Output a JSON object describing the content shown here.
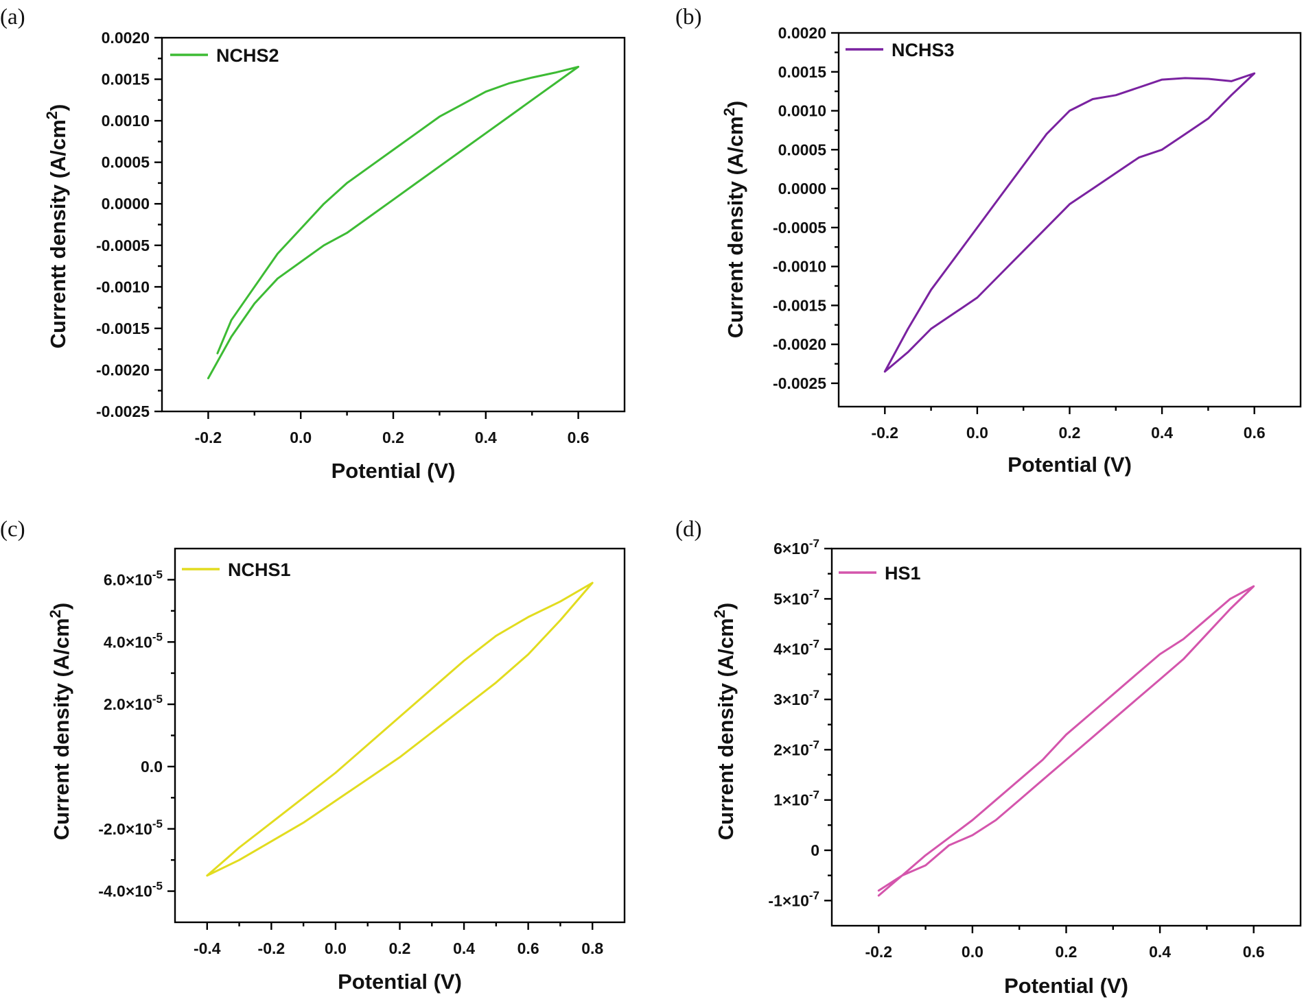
{
  "chart_data": [
    {
      "panel": "(a)",
      "type": "line",
      "title": "",
      "xlabel": "Potential (V)",
      "ylabel_main": "Currentt density (A/cm",
      "ylabel_sup": "2",
      "ylabel_end": ")",
      "xlim": [
        -0.3,
        0.7
      ],
      "ylim": [
        -0.0025,
        0.002
      ],
      "xticks": [
        -0.2,
        0.0,
        0.2,
        0.4,
        0.6
      ],
      "xtick_labels": [
        "-0.2",
        "0.0",
        "0.2",
        "0.4",
        "0.6"
      ],
      "yticks": [
        -0.0025,
        -0.002,
        -0.0015,
        -0.001,
        -0.0005,
        0.0,
        0.0005,
        0.001,
        0.0015,
        0.002
      ],
      "ytick_labels": [
        "-0.0025",
        "-0.0020",
        "-0.0015",
        "-0.0010",
        "-0.0005",
        "0.0000",
        "0.0005",
        "0.0010",
        "0.0015",
        "0.0020"
      ],
      "legend_position": "top-left",
      "series": [
        {
          "name": "NCHS2",
          "color": "#3dbb34",
          "x": [
            -0.18,
            -0.15,
            -0.1,
            -0.05,
            0.0,
            0.05,
            0.1,
            0.15,
            0.2,
            0.25,
            0.3,
            0.35,
            0.4,
            0.45,
            0.5,
            0.55,
            0.6,
            0.55,
            0.5,
            0.45,
            0.4,
            0.35,
            0.3,
            0.25,
            0.2,
            0.15,
            0.1,
            0.05,
            0.0,
            -0.05,
            -0.1,
            -0.15,
            -0.2
          ],
          "y": [
            -0.0018,
            -0.0014,
            -0.001,
            -0.0006,
            -0.0003,
            0.0,
            0.00025,
            0.00045,
            0.00065,
            0.00085,
            0.00105,
            0.0012,
            0.00135,
            0.00145,
            0.00152,
            0.00158,
            0.00165,
            0.00145,
            0.00125,
            0.00105,
            0.00085,
            0.00065,
            0.00045,
            0.00025,
            5e-05,
            -0.00015,
            -0.00035,
            -0.0005,
            -0.0007,
            -0.0009,
            -0.0012,
            -0.0016,
            -0.0021
          ]
        }
      ]
    },
    {
      "panel": "(b)",
      "type": "line",
      "title": "",
      "xlabel": "Potential (V)",
      "ylabel_main": "Current density (A/cm",
      "ylabel_sup": "2",
      "ylabel_end": ")",
      "xlim": [
        -0.3,
        0.7
      ],
      "ylim": [
        -0.0028,
        0.002
      ],
      "xticks": [
        -0.2,
        0.0,
        0.2,
        0.4,
        0.6
      ],
      "xtick_labels": [
        "-0.2",
        "0.0",
        "0.2",
        "0.4",
        "0.6"
      ],
      "yticks": [
        -0.0025,
        -0.002,
        -0.0015,
        -0.001,
        -0.0005,
        0.0,
        0.0005,
        0.001,
        0.0015,
        0.002
      ],
      "ytick_labels": [
        "-0.0025",
        "-0.0020",
        "-0.0015",
        "-0.0010",
        "-0.0005",
        "0.0000",
        "0.0005",
        "0.0010",
        "0.0015",
        "0.0020"
      ],
      "legend_position": "top-left",
      "series": [
        {
          "name": "NCHS3",
          "color": "#7a22a0",
          "x": [
            -0.2,
            -0.15,
            -0.1,
            -0.05,
            0.0,
            0.05,
            0.1,
            0.15,
            0.2,
            0.25,
            0.3,
            0.35,
            0.4,
            0.45,
            0.5,
            0.55,
            0.6,
            0.55,
            0.5,
            0.45,
            0.4,
            0.35,
            0.3,
            0.25,
            0.2,
            0.15,
            0.1,
            0.05,
            0.0,
            -0.05,
            -0.1,
            -0.15,
            -0.2
          ],
          "y": [
            -0.00235,
            -0.0018,
            -0.0013,
            -0.0009,
            -0.0005,
            -0.0001,
            0.0003,
            0.0007,
            0.001,
            0.00115,
            0.0012,
            0.0013,
            0.0014,
            0.00142,
            0.00141,
            0.00138,
            0.00148,
            0.0012,
            0.0009,
            0.0007,
            0.0005,
            0.0004,
            0.0002,
            0.0,
            -0.0002,
            -0.0005,
            -0.0008,
            -0.0011,
            -0.0014,
            -0.0016,
            -0.0018,
            -0.0021,
            -0.00235
          ]
        }
      ]
    },
    {
      "panel": "(c)",
      "type": "line",
      "title": "",
      "xlabel": "Potential (V)",
      "ylabel_main": "Current density (A/cm",
      "ylabel_sup": "2",
      "ylabel_end": ")",
      "xlim": [
        -0.5,
        0.9
      ],
      "ylim": [
        -5e-05,
        7e-05
      ],
      "xticks": [
        -0.4,
        -0.2,
        0.0,
        0.2,
        0.4,
        0.6,
        0.8
      ],
      "xtick_labels": [
        "-0.4",
        "-0.2",
        "0.0",
        "0.2",
        "0.4",
        "0.6",
        "0.8"
      ],
      "yticks": [
        -4e-05,
        -2e-05,
        0.0,
        2e-05,
        4e-05,
        6e-05
      ],
      "ytick_labels": [
        "-4.0×10",
        "-2.0×10",
        "0.0",
        "2.0×10",
        "4.0×10",
        "6.0×10"
      ],
      "ytick_exps": [
        "-5",
        "-5",
        "",
        "-5",
        "-5",
        "-5"
      ],
      "legend_position": "top-left",
      "series": [
        {
          "name": "NCHS1",
          "color": "#e2dc1f",
          "x": [
            -0.4,
            -0.3,
            -0.2,
            -0.1,
            0.0,
            0.1,
            0.2,
            0.3,
            0.4,
            0.5,
            0.55,
            0.6,
            0.7,
            0.8,
            0.7,
            0.6,
            0.5,
            0.4,
            0.3,
            0.2,
            0.1,
            0.0,
            -0.1,
            -0.2,
            -0.3,
            -0.4
          ],
          "y": [
            -3.5e-05,
            -2.6e-05,
            -1.8e-05,
            -1e-05,
            -2e-06,
            7e-06,
            1.6e-05,
            2.5e-05,
            3.4e-05,
            4.2e-05,
            4.5e-05,
            4.8e-05,
            5.3e-05,
            5.9e-05,
            4.7e-05,
            3.6e-05,
            2.7e-05,
            1.9e-05,
            1.1e-05,
            3e-06,
            -4e-06,
            -1.1e-05,
            -1.8e-05,
            -2.4e-05,
            -3e-05,
            -3.5e-05
          ]
        }
      ]
    },
    {
      "panel": "(d)",
      "type": "line",
      "title": "",
      "xlabel": "Potential (V)",
      "ylabel_main": "Current density (A/cm",
      "ylabel_sup": "2",
      "ylabel_end": ")",
      "xlim": [
        -0.3,
        0.7
      ],
      "ylim": [
        -1.5e-07,
        6e-07
      ],
      "xticks": [
        -0.2,
        0.0,
        0.2,
        0.4,
        0.6
      ],
      "xtick_labels": [
        "-0.2",
        "0.0",
        "0.2",
        "0.4",
        "0.6"
      ],
      "yticks": [
        -1e-07,
        0,
        1e-07,
        2e-07,
        3e-07,
        4e-07,
        5e-07,
        6e-07
      ],
      "ytick_labels": [
        "-1×10",
        "0",
        "1×10",
        "2×10",
        "3×10",
        "4×10",
        "5×10",
        "6×10"
      ],
      "ytick_exps": [
        "-7",
        "",
        "-7",
        "-7",
        "-7",
        "-7",
        "-7",
        "-7"
      ],
      "legend_position": "top-left",
      "series": [
        {
          "name": "HS1",
          "color": "#d455ac",
          "x": [
            -0.2,
            -0.15,
            -0.1,
            -0.05,
            0.0,
            0.05,
            0.1,
            0.15,
            0.2,
            0.25,
            0.3,
            0.35,
            0.4,
            0.45,
            0.5,
            0.55,
            0.6,
            0.55,
            0.5,
            0.45,
            0.4,
            0.35,
            0.3,
            0.25,
            0.2,
            0.15,
            0.1,
            0.05,
            0.0,
            -0.05,
            -0.1,
            -0.15,
            -0.2
          ],
          "y": [
            -8e-08,
            -5e-08,
            -1e-08,
            2.5e-08,
            6e-08,
            1e-07,
            1.4e-07,
            1.8e-07,
            2.3e-07,
            2.7e-07,
            3.1e-07,
            3.5e-07,
            3.9e-07,
            4.2e-07,
            4.6e-07,
            5e-07,
            5.25e-07,
            4.8e-07,
            4.3e-07,
            3.8e-07,
            3.4e-07,
            3e-07,
            2.6e-07,
            2.2e-07,
            1.8e-07,
            1.4e-07,
            1e-07,
            6e-08,
            3e-08,
            1e-08,
            -3e-08,
            -5e-08,
            -9e-08
          ]
        }
      ]
    }
  ]
}
